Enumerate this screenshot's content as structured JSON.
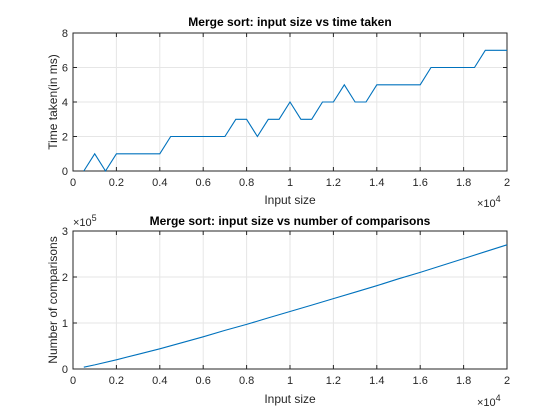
{
  "colors": {
    "series": "#0072bd"
  },
  "chart_data": [
    {
      "type": "line",
      "title": "Merge sort: input size vs time taken",
      "xlabel": "Input size",
      "ylabel": "Time taken(in ms)",
      "xlim": [
        0,
        20000
      ],
      "ylim": [
        0,
        8
      ],
      "grid": true,
      "x_exponent": "×10",
      "x_exponent_power": "4",
      "x_ticks": [
        {
          "value": 0,
          "label": "0"
        },
        {
          "value": 2000,
          "label": "0.2"
        },
        {
          "value": 4000,
          "label": "0.4"
        },
        {
          "value": 6000,
          "label": "0.6"
        },
        {
          "value": 8000,
          "label": "0.8"
        },
        {
          "value": 10000,
          "label": "1"
        },
        {
          "value": 12000,
          "label": "1.2"
        },
        {
          "value": 14000,
          "label": "1.4"
        },
        {
          "value": 16000,
          "label": "1.6"
        },
        {
          "value": 18000,
          "label": "1.8"
        },
        {
          "value": 20000,
          "label": "2"
        }
      ],
      "y_ticks": [
        {
          "value": 0,
          "label": "0"
        },
        {
          "value": 2,
          "label": "2"
        },
        {
          "value": 4,
          "label": "4"
        },
        {
          "value": 6,
          "label": "6"
        },
        {
          "value": 8,
          "label": "8"
        }
      ],
      "series": [
        {
          "x": [
            500,
            1000,
            1500,
            2000,
            2500,
            3000,
            3500,
            4000,
            4500,
            5000,
            5500,
            6000,
            6500,
            7000,
            7500,
            8000,
            8500,
            9000,
            9500,
            10000,
            10500,
            11000,
            11500,
            12000,
            12500,
            13000,
            13500,
            14000,
            14500,
            15000,
            15500,
            16000,
            16500,
            17000,
            17500,
            18000,
            18500,
            19000,
            19500,
            20000
          ],
          "y": [
            0,
            1,
            0,
            1,
            1,
            1,
            1,
            1,
            2,
            2,
            2,
            2,
            2,
            2,
            3,
            3,
            2,
            3,
            3,
            4,
            3,
            3,
            4,
            4,
            5,
            4,
            4,
            5,
            5,
            5,
            5,
            5,
            6,
            6,
            6,
            6,
            6,
            7,
            7,
            7
          ]
        }
      ]
    },
    {
      "type": "line",
      "title": "Merge sort: input size vs number of comparisons",
      "xlabel": "Input size",
      "ylabel": "Number of comparisons",
      "xlim": [
        0,
        20000
      ],
      "ylim": [
        0,
        300000
      ],
      "grid": true,
      "x_exponent": "×10",
      "x_exponent_power": "4",
      "y_exponent": "×10",
      "y_exponent_power": "5",
      "x_ticks": [
        {
          "value": 0,
          "label": "0"
        },
        {
          "value": 2000,
          "label": "0.2"
        },
        {
          "value": 4000,
          "label": "0.4"
        },
        {
          "value": 6000,
          "label": "0.6"
        },
        {
          "value": 8000,
          "label": "0.8"
        },
        {
          "value": 10000,
          "label": "1"
        },
        {
          "value": 12000,
          "label": "1.2"
        },
        {
          "value": 14000,
          "label": "1.4"
        },
        {
          "value": 16000,
          "label": "1.6"
        },
        {
          "value": 18000,
          "label": "1.8"
        },
        {
          "value": 20000,
          "label": "2"
        }
      ],
      "y_ticks": [
        {
          "value": 0,
          "label": "0"
        },
        {
          "value": 100000,
          "label": "1"
        },
        {
          "value": 200000,
          "label": "2"
        },
        {
          "value": 300000,
          "label": "3"
        }
      ],
      "series": [
        {
          "x": [
            500,
            1000,
            2000,
            3000,
            4000,
            5000,
            6000,
            7000,
            8000,
            9000,
            10000,
            11000,
            12000,
            13000,
            14000,
            15000,
            16000,
            17000,
            18000,
            19000,
            20000
          ],
          "y": [
            4000,
            9000,
            20000,
            32000,
            44000,
            57000,
            70000,
            84000,
            97000,
            111000,
            125000,
            139000,
            153000,
            167000,
            181000,
            196000,
            210000,
            225000,
            240000,
            255000,
            270000
          ]
        }
      ]
    }
  ]
}
